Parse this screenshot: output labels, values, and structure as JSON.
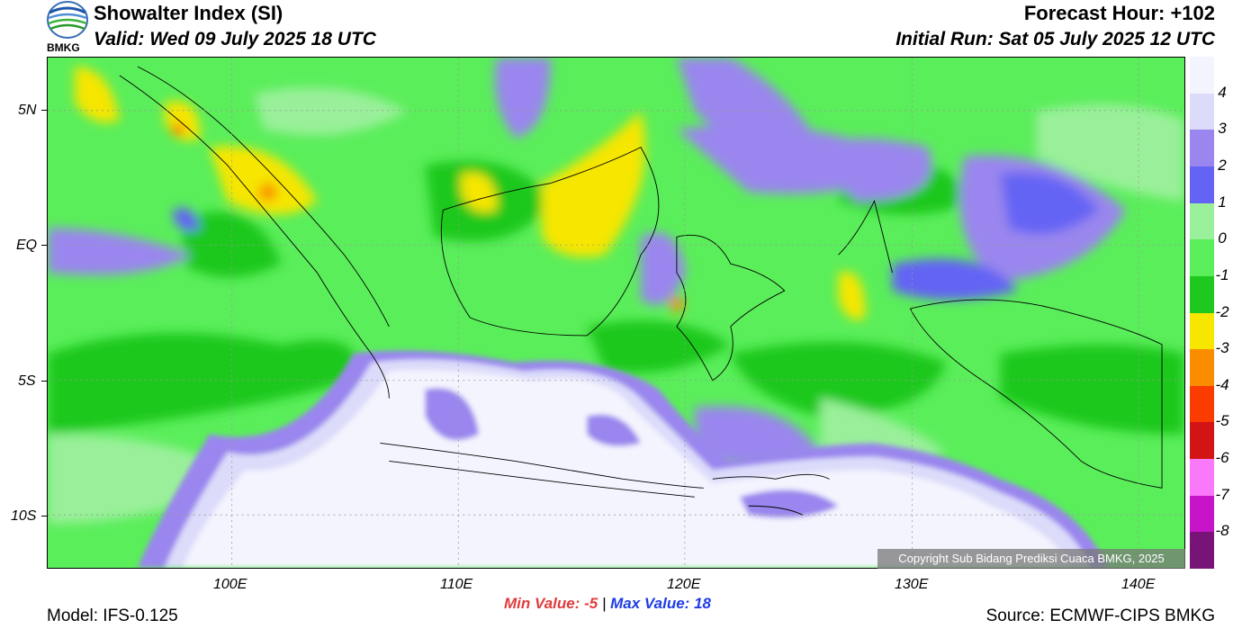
{
  "header": {
    "title": "Showalter Index (SI)",
    "valid": "Valid: Wed 09 July 2025 18 UTC",
    "forecast_hour": "Forecast Hour: +102",
    "initial_run": "Initial Run: Sat 05 July 2025 12 UTC",
    "logo_text": "BMKG"
  },
  "axes": {
    "lat_labels": [
      "5N",
      "EQ",
      "5S",
      "10S"
    ],
    "lon_labels": [
      "100E",
      "110E",
      "120E",
      "130E",
      "140E"
    ]
  },
  "colorbar": {
    "labels": [
      "4",
      "3",
      "2",
      "1",
      "0",
      "-1",
      "-2",
      "-3",
      "-4",
      "-5",
      "-6",
      "-7",
      "-8"
    ],
    "colors": [
      "#f4f4fe",
      "#dcdcfa",
      "#9a86ee",
      "#6464f4",
      "#9af09a",
      "#5aee5a",
      "#1ec81e",
      "#f6e600",
      "#fa8c00",
      "#fa3c00",
      "#d21414",
      "#fa78fa",
      "#c814c8",
      "#781478"
    ]
  },
  "stats": {
    "min_label": "Min Value:",
    "min_value": "-5",
    "separator": "|",
    "max_label": "Max Value:",
    "max_value": "18"
  },
  "footer": {
    "model": "Model: IFS-0.125",
    "source": "Source: ECMWF-CIPS BMKG",
    "copyright": "Copyright Sub Bidang Prediksi Cuaca BMKG, 2025"
  }
}
